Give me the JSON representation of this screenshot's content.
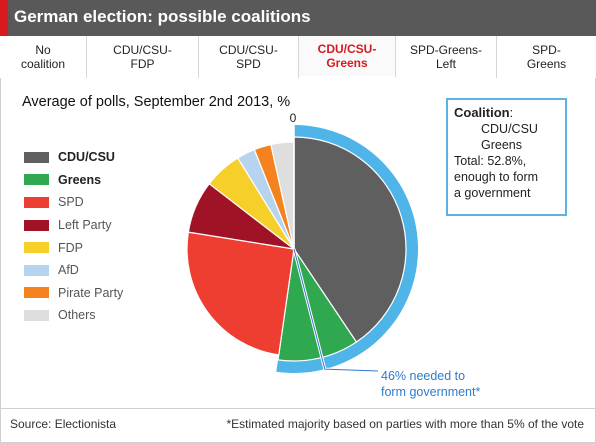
{
  "header": {
    "title": "German election: possible coalitions",
    "accent_color": "#d8191f",
    "bar_color": "#595959"
  },
  "tabs": [
    {
      "label": "No\ncoalition",
      "active": false
    },
    {
      "label": "CDU/CSU-\nFDP",
      "active": false
    },
    {
      "label": "CDU/CSU-\nSPD",
      "active": false
    },
    {
      "label": "CDU/CSU-\nGreens",
      "active": true
    },
    {
      "label": "SPD-Greens-\nLeft",
      "active": false
    },
    {
      "label": "SPD-\nGreens",
      "active": false
    }
  ],
  "chart_data": {
    "type": "pie",
    "title": "Average of polls, September 2nd 2013, %",
    "start_label": "0",
    "slices": [
      {
        "name": "CDU/CSU",
        "value": 41.0,
        "color": "#5f5f5f",
        "in_coalition": true
      },
      {
        "name": "Greens",
        "value": 11.8,
        "color": "#2fa84f",
        "in_coalition": true
      },
      {
        "name": "SPD",
        "value": 25.5,
        "color": "#ee3e32",
        "in_coalition": false
      },
      {
        "name": "Left Party",
        "value": 8.0,
        "color": "#a01225",
        "in_coalition": false
      },
      {
        "name": "FDP",
        "value": 5.8,
        "color": "#f6cf2a",
        "in_coalition": false
      },
      {
        "name": "AfD",
        "value": 2.8,
        "color": "#b6d4ef",
        "in_coalition": false
      },
      {
        "name": "Pirate Party",
        "value": 2.6,
        "color": "#f4821f",
        "in_coalition": false
      },
      {
        "name": "Others",
        "value": 3.5,
        "color": "#dedede",
        "in_coalition": false
      }
    ],
    "legend": [
      {
        "name": "CDU/CSU",
        "color": "#5f5f5f",
        "bold": true
      },
      {
        "name": "Greens",
        "color": "#2fa84f",
        "bold": true
      },
      {
        "name": "SPD",
        "color": "#ee3e32",
        "bold": false
      },
      {
        "name": "Left Party",
        "color": "#a01225",
        "bold": false
      },
      {
        "name": "FDP",
        "color": "#f6cf2a",
        "bold": false
      },
      {
        "name": "AfD",
        "color": "#b6d4ef",
        "bold": false
      },
      {
        "name": "Pirate Party",
        "color": "#f4821f",
        "bold": false
      },
      {
        "name": "Others",
        "color": "#dedede",
        "bold": false
      }
    ],
    "coalition_total": 52.8,
    "majority_threshold": 46,
    "highlight_color": "#4fb4e8",
    "annotation": "46% needed to\nform government*"
  },
  "info_box": {
    "key": "Coalition",
    "sep": ":",
    "parties_line1": "CDU/CSU",
    "parties_line2": "Greens",
    "total_line": "Total: 52.8%,",
    "rest_line1": "enough to form",
    "rest_line2": "a government"
  },
  "footer": {
    "source": "Source: Electionista",
    "footnote": "*Estimated majority based on parties with more than 5% of the vote"
  }
}
